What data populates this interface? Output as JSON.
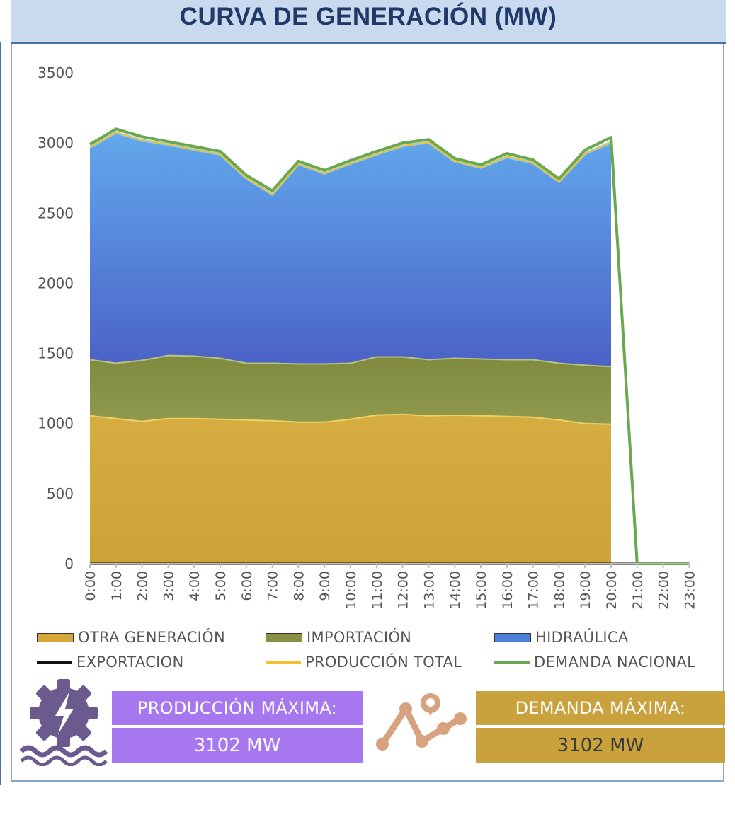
{
  "header": {
    "title": "CURVA DE GENERACIÓN (MW)"
  },
  "chart_data": {
    "type": "area",
    "stacked": true,
    "x": [
      "0:00",
      "1:00",
      "2:00",
      "3:00",
      "4:00",
      "5:00",
      "6:00",
      "7:00",
      "8:00",
      "9:00",
      "10:00",
      "11:00",
      "12:00",
      "13:00",
      "14:00",
      "15:00",
      "16:00",
      "17:00",
      "18:00",
      "19:00",
      "20:00",
      "21:00",
      "22:00",
      "23:00"
    ],
    "ylim": [
      0,
      3500
    ],
    "yticks": [
      0,
      500,
      1000,
      1500,
      2000,
      2500,
      3000,
      3500
    ],
    "grid": false,
    "legend_position": "bottom",
    "series": [
      {
        "name": "OTRA GENERACIÓN",
        "kind": "area",
        "color": "#d4a93a",
        "values": [
          1060,
          1040,
          1020,
          1040,
          1040,
          1035,
          1030,
          1025,
          1015,
          1015,
          1035,
          1065,
          1070,
          1060,
          1065,
          1060,
          1055,
          1050,
          1030,
          1005,
          1000,
          null,
          null,
          null
        ]
      },
      {
        "name": "IMPORTACIÓN",
        "kind": "area",
        "color": "#8a9146",
        "values": [
          400,
          395,
          435,
          450,
          445,
          435,
          405,
          410,
          415,
          415,
          400,
          415,
          410,
          400,
          405,
          405,
          405,
          410,
          405,
          415,
          410,
          null,
          null,
          null
        ]
      },
      {
        "name": "HIDRAÚLICA",
        "kind": "area",
        "color": "#4d7fd8",
        "values": [
          1510,
          1640,
          1565,
          1500,
          1470,
          1450,
          1315,
          1200,
          1420,
          1355,
          1420,
          1440,
          1500,
          1545,
          1400,
          1360,
          1440,
          1400,
          1290,
          1505,
          1595,
          null,
          null,
          null
        ]
      },
      {
        "name": "EXPORTACION",
        "kind": "line",
        "color": "#111111",
        "values": [
          0,
          0,
          0,
          0,
          0,
          0,
          0,
          0,
          0,
          0,
          0,
          0,
          0,
          0,
          0,
          0,
          0,
          0,
          0,
          0,
          0,
          0,
          null,
          null
        ]
      },
      {
        "name": "PRODUCCIÓN TOTAL",
        "kind": "line",
        "color": "#f2c12e",
        "values": [
          2970,
          3075,
          3020,
          2990,
          2955,
          2920,
          2750,
          2635,
          2850,
          2785,
          2855,
          2920,
          2980,
          3005,
          2870,
          2825,
          2905,
          2860,
          2725,
          2925,
          3005,
          null,
          null,
          null
        ]
      },
      {
        "name": "DEMANDA NACIONAL",
        "kind": "line",
        "color": "#6aa84f",
        "values": [
          2990,
          3100,
          3045,
          3010,
          2975,
          2940,
          2770,
          2660,
          2870,
          2805,
          2875,
          2940,
          3000,
          3025,
          2890,
          2845,
          2925,
          2880,
          2745,
          2950,
          3040,
          0,
          0,
          0
        ]
      }
    ]
  },
  "stats": {
    "produccion": {
      "label": "PRODUCCIÓN MÁXIMA:",
      "value": "3102 MW",
      "color": "#a777f0",
      "icon": "hydro-turbine-lightning-icon"
    },
    "demanda": {
      "label": "DEMANDA MÁXIMA:",
      "value": "3102 MW",
      "color": "#c9a13d",
      "icon": "route-map-pin-icon"
    }
  }
}
